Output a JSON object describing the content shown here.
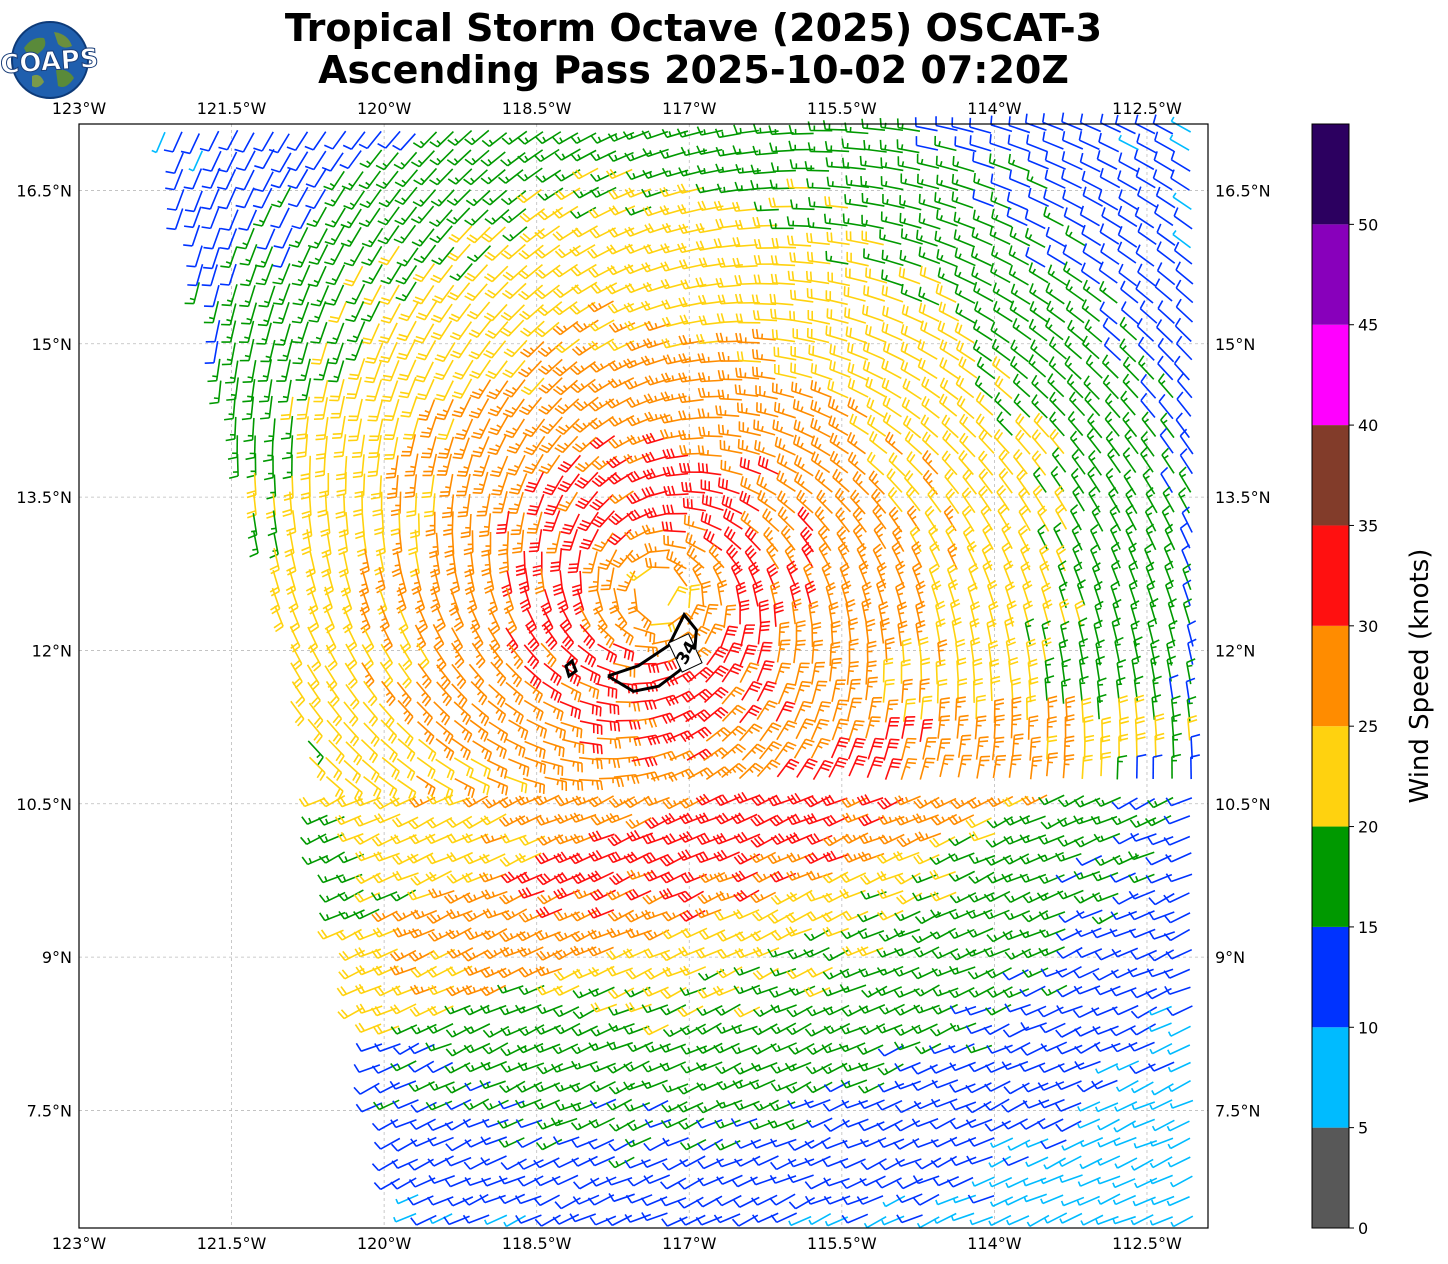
{
  "title_line1": "Tropical Storm Octave (2025) OSCAT-3",
  "title_line2": "Ascending Pass 2025-10-02 07:20Z",
  "logo_text": "COAPS",
  "chart_data": {
    "type": "wind-barb-map",
    "lon_range": [
      -123.0,
      -111.9
    ],
    "lat_range": [
      6.35,
      17.15
    ],
    "lon_ticks": [
      -123,
      -121.5,
      -120,
      -118.5,
      -117,
      -115.5,
      -114,
      -112.5
    ],
    "lon_tick_labels": [
      "123°W",
      "121.5°W",
      "120°W",
      "118.5°W",
      "117°W",
      "115.5°W",
      "114°W",
      "112.5°W"
    ],
    "lat_ticks": [
      16.5,
      15,
      13.5,
      12,
      10.5,
      9,
      7.5
    ],
    "lat_tick_labels": [
      "16.5°N",
      "15°N",
      "13.5°N",
      "12°N",
      "10.5°N",
      "9°N",
      "7.5°N"
    ],
    "grid": true,
    "storm_center": {
      "lon": -117.3,
      "lat": 12.55
    },
    "contour": {
      "label": "34",
      "points": [
        [
          -117.8,
          11.75
        ],
        [
          -117.55,
          11.6
        ],
        [
          -117.3,
          11.65
        ],
        [
          -117.1,
          11.8
        ],
        [
          -116.95,
          11.95
        ],
        [
          -116.93,
          12.2
        ],
        [
          -117.05,
          12.35
        ],
        [
          -117.2,
          12.05
        ],
        [
          -117.5,
          11.85
        ],
        [
          -117.8,
          11.75
        ]
      ]
    },
    "colorbar": {
      "title": "Wind Speed (knots)",
      "tick_values": [
        0,
        5,
        10,
        15,
        20,
        25,
        30,
        35,
        40,
        45,
        50
      ],
      "tick_labels": [
        "0",
        "5",
        "10",
        "15",
        "20",
        "25",
        "30",
        "35",
        "40",
        "45",
        "50"
      ],
      "bins": [
        {
          "min": 0,
          "max": 5,
          "color": "#585858"
        },
        {
          "min": 5,
          "max": 10,
          "color": "#00bbff"
        },
        {
          "min": 10,
          "max": 15,
          "color": "#0033ff"
        },
        {
          "min": 15,
          "max": 20,
          "color": "#009900"
        },
        {
          "min": 20,
          "max": 25,
          "color": "#ffd20f"
        },
        {
          "min": 25,
          "max": 30,
          "color": "#ff8c00"
        },
        {
          "min": 30,
          "max": 35,
          "color": "#ff1010"
        },
        {
          "min": 35,
          "max": 40,
          "color": "#823c2a"
        },
        {
          "min": 40,
          "max": 45,
          "color": "#ff00ff"
        },
        {
          "min": 45,
          "max": 50,
          "color": "#8800bb"
        },
        {
          "min": 50,
          "max": 55,
          "color": "#2c0060"
        }
      ]
    }
  }
}
